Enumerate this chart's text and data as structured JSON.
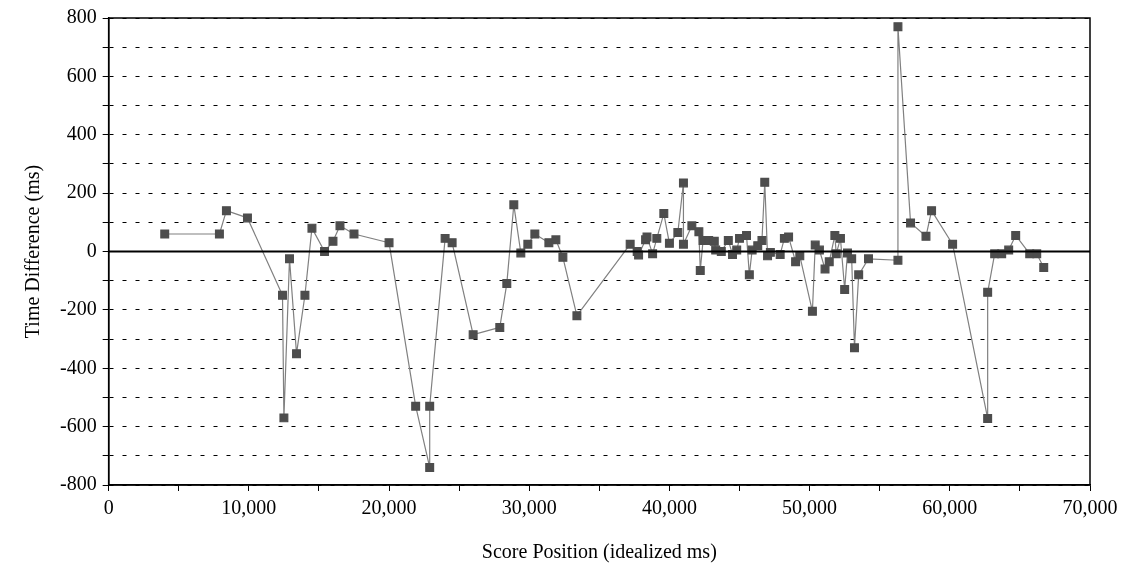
{
  "chart_data": {
    "type": "line",
    "xlabel": "Score Position (idealized ms)",
    "ylabel": "Time Difference (ms)",
    "xlim": [
      0,
      70000
    ],
    "xticks": [
      0,
      {
        "value": 5000,
        "label": null
      },
      {
        "value": 10000,
        "label": "10,000"
      },
      {
        "value": 15000,
        "label": null
      },
      {
        "value": 20000,
        "label": "20,000"
      },
      {
        "value": 25000,
        "label": null
      },
      {
        "value": 30000,
        "label": "30,000"
      },
      {
        "value": 35000,
        "label": null
      },
      {
        "value": 40000,
        "label": "40,000"
      },
      {
        "value": 45000,
        "label": null
      },
      {
        "value": 50000,
        "label": "50,000"
      },
      {
        "value": 55000,
        "label": null
      },
      {
        "value": 60000,
        "label": "60,000"
      },
      {
        "value": 65000,
        "label": null
      },
      {
        "value": 70000,
        "label": "70,000"
      }
    ],
    "ylim": [
      -800,
      800
    ],
    "yticks": [
      -800,
      {
        "value": -700,
        "label": null
      },
      -600,
      {
        "value": -500,
        "label": null
      },
      -400,
      {
        "value": -300,
        "label": null
      },
      -200,
      {
        "value": -100,
        "label": null
      },
      0,
      {
        "value": 100,
        "label": null
      },
      200,
      {
        "value": 300,
        "label": null
      },
      400,
      {
        "value": 500,
        "label": null
      },
      600,
      {
        "value": 700,
        "label": null
      },
      800
    ],
    "grid": "y",
    "marker": "square",
    "line_style": "solid",
    "ref_lines": [
      {
        "axis": "y",
        "value": 0,
        "color": "#000000"
      }
    ],
    "series": [
      {
        "color": "#4d4d4d",
        "x": [
          4000,
          7900,
          8400,
          9900,
          12400,
          12500,
          12900,
          13400,
          14000,
          14500,
          15400,
          16000,
          16500,
          17500,
          20000,
          21900,
          22900,
          22900,
          24000,
          24500,
          26000,
          27900,
          28400,
          28900,
          29400,
          29900,
          30400,
          31400,
          31900,
          32400,
          33400,
          37200,
          37700,
          37800,
          38300,
          38400,
          38800,
          39100,
          39600,
          40000,
          40600,
          41000,
          41000,
          41600,
          42100,
          42200,
          42400,
          42800,
          43200,
          43300,
          43700,
          44200,
          44500,
          44800,
          45000,
          45500,
          45700,
          45900,
          46300,
          46600,
          46800,
          47000,
          47200,
          47900,
          48200,
          48500,
          49000,
          49300,
          50200,
          50400,
          50700,
          51100,
          51400,
          51800,
          51900,
          52200,
          52500,
          52700,
          53000,
          53200,
          53500,
          54200,
          56300,
          56300,
          57200,
          58300,
          58700,
          60200,
          62700,
          62700,
          63200,
          63700,
          64200,
          64700,
          65700,
          66200,
          66700
        ],
        "values": [
          60,
          60,
          140,
          115,
          -150,
          -570,
          -25,
          -350,
          -150,
          80,
          0,
          35,
          88,
          60,
          30,
          -530,
          -740,
          -530,
          45,
          30,
          -285,
          -260,
          -110,
          160,
          -5,
          25,
          60,
          30,
          40,
          -20,
          -220,
          25,
          0,
          -12,
          40,
          50,
          -8,
          45,
          130,
          28,
          65,
          235,
          25,
          88,
          68,
          -65,
          38,
          38,
          35,
          5,
          0,
          38,
          -10,
          5,
          45,
          55,
          -80,
          5,
          20,
          38,
          237,
          -15,
          -3,
          -10,
          45,
          50,
          -35,
          -15,
          -205,
          22,
          5,
          -60,
          -35,
          55,
          -8,
          45,
          -130,
          -5,
          -25,
          -330,
          -80,
          -25,
          -30,
          770,
          98,
          52,
          140,
          25,
          -572,
          -140,
          -8,
          -8,
          5,
          55,
          -8,
          -8,
          -55
        ]
      }
    ]
  }
}
